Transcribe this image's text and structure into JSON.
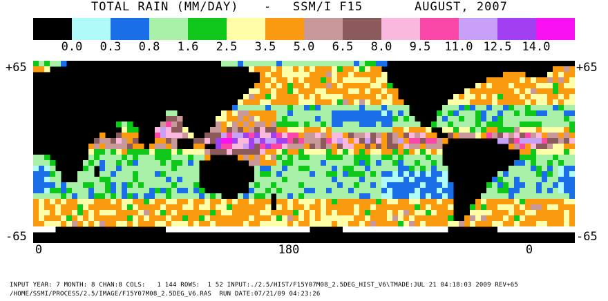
{
  "header": {
    "title_left": "TOTAL RAIN (MM/DAY)",
    "title_sep": "-",
    "title_sensor": "SSM/I F15",
    "title_date": "AUGUST, 2007"
  },
  "legend": {
    "colors": [
      "#000000",
      "#b0fafa",
      "#1a6ee8",
      "#a8f0a8",
      "#10c81a",
      "#fefea8",
      "#fa9a10",
      "#c89898",
      "#8c5a5a",
      "#fab8dc",
      "#fa48a8",
      "#c8a0f8",
      "#a040f0",
      "#f810f0"
    ],
    "labels": [
      "0.0",
      "0.3",
      "0.8",
      "1.6",
      "2.5",
      "3.5",
      "5.0",
      "6.5",
      "8.0",
      "9.5",
      "11.0",
      "12.5",
      "14.0"
    ]
  },
  "axes": {
    "lat_top_left": "+65",
    "lat_top_right": "+65",
    "lat_bottom_left": "-65",
    "lat_bottom_right": "-65",
    "lon_labels": [
      "0",
      "180",
      "0"
    ]
  },
  "footer": {
    "line1": "INPUT YEAR: 7 MONTH: 8 CHAN:8 COLS:   1 144 ROWS:  1 52 INPUT:./2.5/HIST/F15Y07M08_2.5DEG_HIST_V6\\TMADE:JUL 21 04:18:03 2009 REV+65",
    "line2": "/HOME/SSMI/PROCESS/2.5/IMAGE/F15Y07M08_2.5DEG_V6.RAS  RUN DATE:07/21/09 04:23:26"
  },
  "map": {
    "grid_cols": 144,
    "grid_rows": 52,
    "lat_range": [
      -65,
      65
    ],
    "lon_range": [
      0,
      360
    ]
  }
}
